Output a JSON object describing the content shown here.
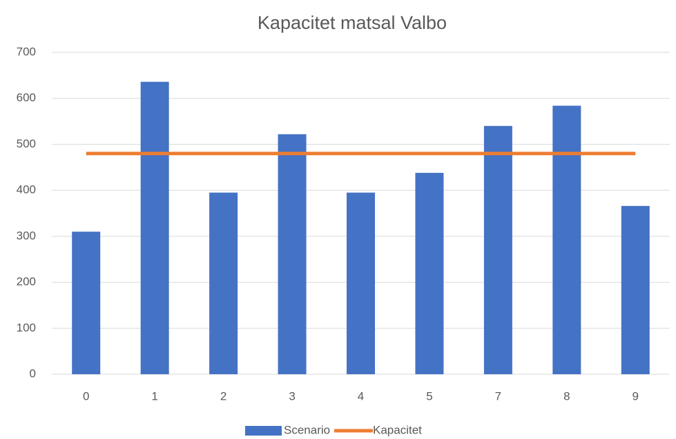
{
  "chart_data": {
    "type": "bar",
    "title": "Kapacitet matsal Valbo",
    "categories": [
      "0",
      "1",
      "2",
      "3",
      "4",
      "5",
      "7",
      "8",
      "9"
    ],
    "series": [
      {
        "name": "Scenario",
        "type": "bar",
        "color": "#4472c4",
        "values": [
          310,
          636,
          395,
          522,
          395,
          438,
          540,
          584,
          366
        ]
      },
      {
        "name": "Kapacitet",
        "type": "line",
        "color": "#ed7d31",
        "values": [
          480,
          480,
          480,
          480,
          480,
          480,
          480,
          480,
          480
        ]
      }
    ],
    "ylim": [
      0,
      700
    ],
    "yticks": [
      0,
      100,
      200,
      300,
      400,
      500,
      600,
      700
    ],
    "grid": true,
    "legend": "bottom"
  }
}
